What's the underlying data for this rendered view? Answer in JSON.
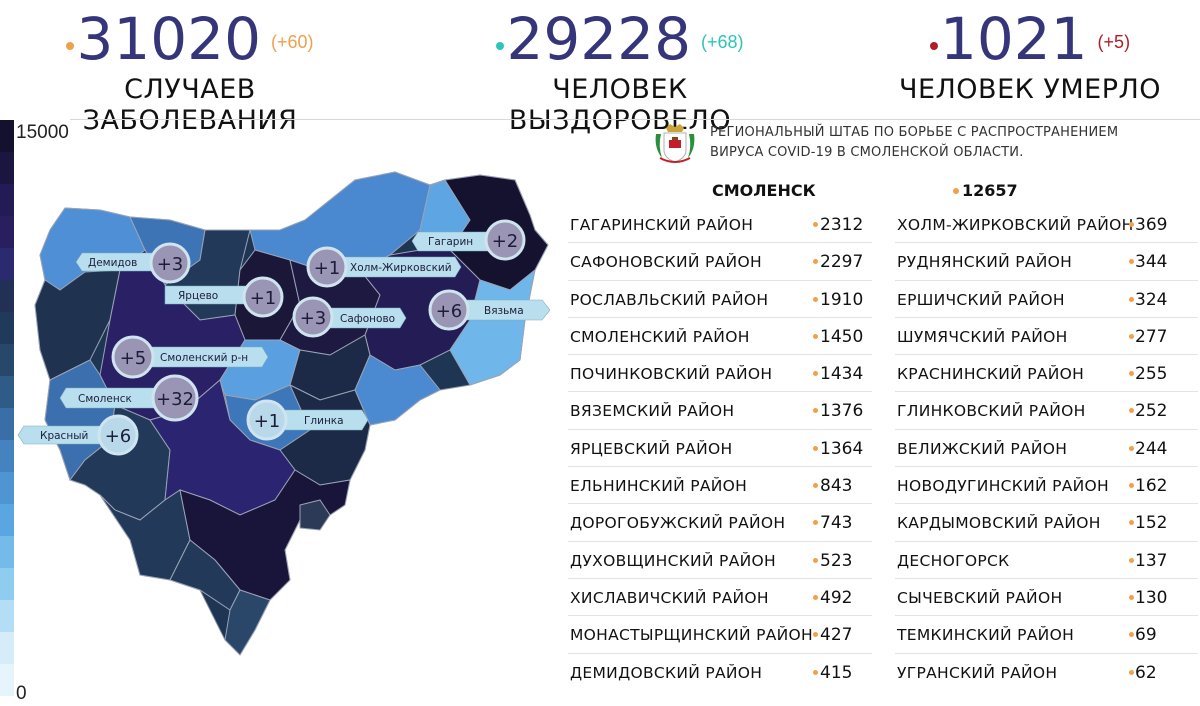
{
  "stats": {
    "cases": {
      "value": "31020",
      "delta": "(+60)",
      "label": "СЛУЧАЕВ ЗАБОЛЕВАНИЯ",
      "color": "#f0a04b"
    },
    "recovered": {
      "value": "29228",
      "delta": "(+68)",
      "label": "ЧЕЛОВЕК ВЫЗДОРОВЕЛО",
      "color": "#2ec4b6"
    },
    "deaths": {
      "value": "1021",
      "delta": "(+5)",
      "label": "ЧЕЛОВЕК УМЕРЛО",
      "color": "#b01e2a"
    }
  },
  "legend": {
    "max": "15000",
    "min": "0",
    "colors": [
      "#14112e",
      "#1a1640",
      "#231b55",
      "#2a1f5e",
      "#2b2a6e",
      "#223055",
      "#1f3a5a",
      "#27476b",
      "#2e5c86",
      "#3a6ea6",
      "#4583c0",
      "#4f95d4",
      "#5aa6e2",
      "#74bbea",
      "#8fcdf0",
      "#b4def5",
      "#d6edf9",
      "#e6f4fb"
    ]
  },
  "header": {
    "org_line1": "РЕГИОНАЛЬНЫЙ ШТАБ ПО БОРЬБЕ С РАСПРОСТРАНЕНИЕМ",
    "org_line2": "ВИРУСА  COVID-19 В СМОЛЕНСКОЙ ОБЛАСТИ."
  },
  "city": {
    "name": "СМОЛЕНСК",
    "value": "12657"
  },
  "map": {
    "bubbles": [
      {
        "delta": "+3",
        "label": "Демидов"
      },
      {
        "delta": "+1",
        "label": "Ярцево"
      },
      {
        "delta": "+1",
        "label": "Холм-Жирковский"
      },
      {
        "delta": "+2",
        "label": "Гагарин"
      },
      {
        "delta": "+3",
        "label": "Сафоново"
      },
      {
        "delta": "+6",
        "label": "Вязьма"
      },
      {
        "delta": "+5",
        "label": "Смоленский р-н"
      },
      {
        "delta": "+32",
        "label": "Смоленск"
      },
      {
        "delta": "+6",
        "label": "Красный"
      },
      {
        "delta": "+1",
        "label": "Глинка"
      }
    ]
  },
  "table_left": [
    {
      "name": "ГАГАРИНСКИЙ РАЙОН",
      "value": "2312"
    },
    {
      "name": "САФОНОВСКИЙ РАЙОН",
      "value": "2297"
    },
    {
      "name": "РОСЛАВЛЬСКИЙ РАЙОН",
      "value": "1910"
    },
    {
      "name": "СМОЛЕНСКИЙ РАЙОН",
      "value": "1450"
    },
    {
      "name": "ПОЧИНКОВСКИЙ РАЙОН",
      "value": "1434"
    },
    {
      "name": "ВЯЗЕМСКИЙ РАЙОН",
      "value": "1376"
    },
    {
      "name": "ЯРЦЕВСКИЙ РАЙОН",
      "value": "1364"
    },
    {
      "name": "ЕЛЬНИНСКИЙ РАЙОН",
      "value": "843"
    },
    {
      "name": "ДОРОГОБУЖСКИЙ РАЙОН",
      "value": "743"
    },
    {
      "name": "ДУХОВЩИНСКИЙ РАЙОН",
      "value": "523"
    },
    {
      "name": "ХИСЛАВИЧСКИЙ РАЙОН",
      "value": "492"
    },
    {
      "name": "МОНАСТЫРЩИНСКИЙ РАЙОН",
      "value": "427"
    },
    {
      "name": "ДЕМИДОВСКИЙ РАЙОН",
      "value": "415"
    }
  ],
  "table_right": [
    {
      "name": "ХОЛМ-ЖИРКОВСКИЙ РАЙОН",
      "value": "369"
    },
    {
      "name": "РУДНЯНСКИЙ РАЙОН",
      "value": "344"
    },
    {
      "name": "ЕРШИЧСКИЙ РАЙОН",
      "value": "324"
    },
    {
      "name": "ШУМЯЧСКИЙ РАЙОН",
      "value": "277"
    },
    {
      "name": "КРАСНИНСКИЙ РАЙОН",
      "value": "255"
    },
    {
      "name": "ГЛИНКОВСКИЙ РАЙОН",
      "value": "252"
    },
    {
      "name": "ВЕЛИЖСКИЙ РАЙОН",
      "value": "244"
    },
    {
      "name": "НОВОДУГИНСКИЙ РАЙОН",
      "value": "162"
    },
    {
      "name": "КАРДЫМОВСКИЙ РАЙОН",
      "value": "152"
    },
    {
      "name": "ДЕСНОГОРСК",
      "value": "137"
    },
    {
      "name": "СЫЧЕВСКИЙ РАЙОН",
      "value": "130"
    },
    {
      "name": "ТЕМКИНСКИЙ РАЙОН",
      "value": "69"
    },
    {
      "name": "УГРАНСКИЙ РАЙОН",
      "value": "62"
    }
  ]
}
